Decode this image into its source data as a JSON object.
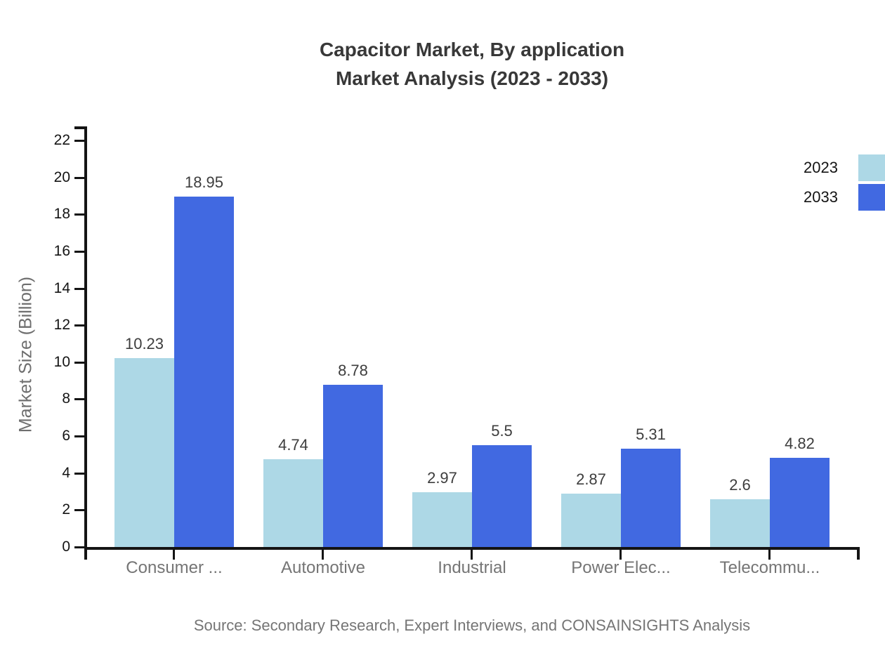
{
  "chart_data": {
    "type": "bar",
    "title": "Capacitor Market, By application Market Analysis (2023 - 2033)",
    "title_lines": [
      "Capacitor Market, By application",
      "Market Analysis (2023 - 2033)"
    ],
    "categories": [
      "Consumer ...",
      "Automotive",
      "Industrial",
      "Power Elec...",
      "Telecommu..."
    ],
    "series": [
      {
        "name": "2023",
        "color": "#ADD8E6",
        "values": [
          10.23,
          4.74,
          2.97,
          2.87,
          2.6
        ]
      },
      {
        "name": "2033",
        "color": "#4169E1",
        "values": [
          18.95,
          8.78,
          5.5,
          5.31,
          4.82
        ]
      }
    ],
    "xlabel": "",
    "ylabel": "Market Size (Billion)",
    "ylim": [
      0,
      22
    ],
    "ytick_step": 2,
    "yticks": [
      0,
      2,
      4,
      6,
      8,
      10,
      12,
      14,
      16,
      18,
      20,
      22
    ],
    "grid": false,
    "legend_position": "top-right",
    "value_labels": true
  },
  "footer": {
    "source": "Source: Secondary Research, Expert Interviews, and CONSAINSIGHTS Analysis"
  },
  "colors": {
    "axis": "#141414",
    "tick_label": "#141414",
    "category_label": "#757575",
    "value_label": "#3d3d3d",
    "title": "#383838",
    "axis_title": "#6e6e6e",
    "source": "#757575",
    "background": "#ffffff"
  }
}
